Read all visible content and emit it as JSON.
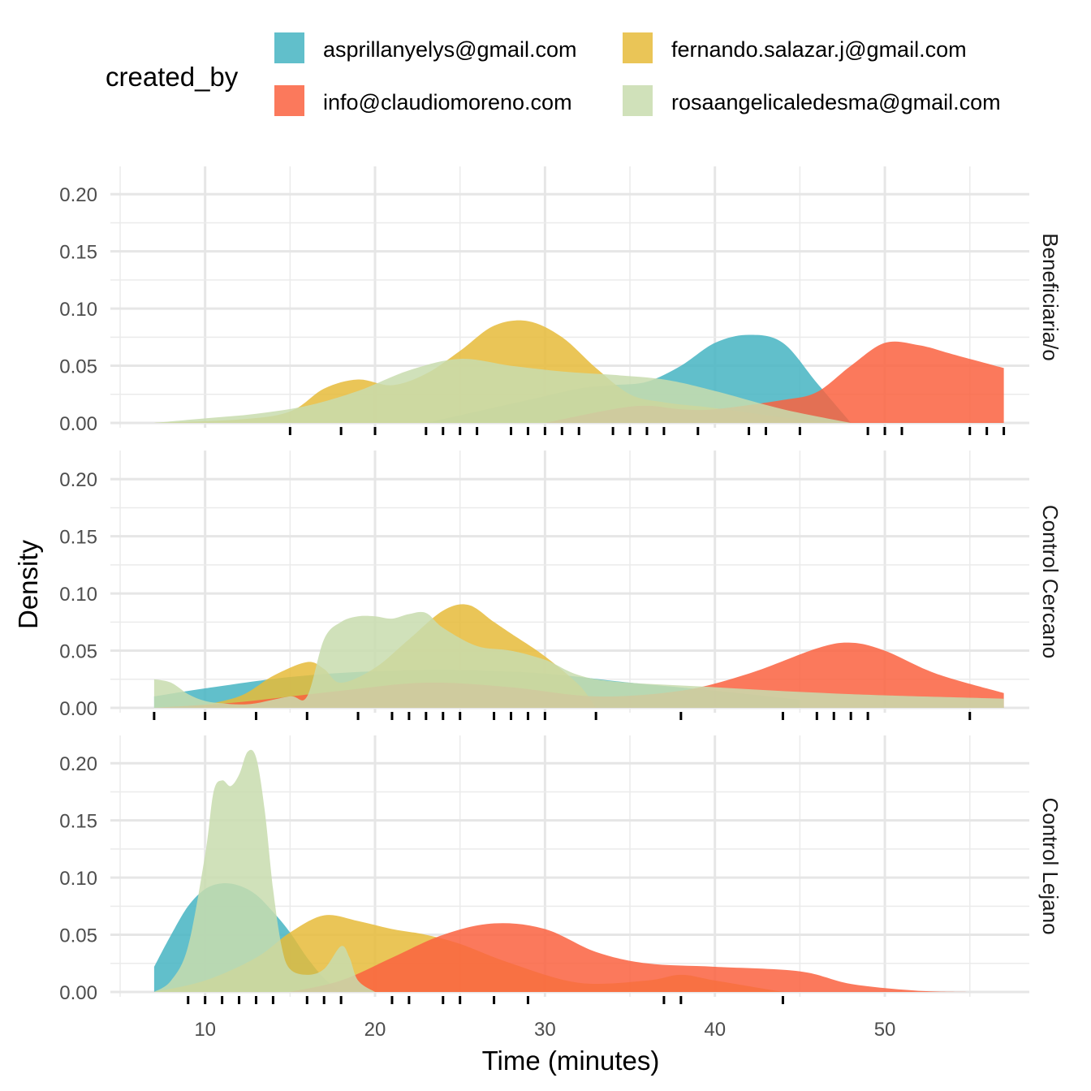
{
  "chart_data": {
    "type": "area",
    "subtype": "density",
    "xlabel": "Time (minutes)",
    "ylabel": "Density",
    "xlim": [
      5,
      58.5
    ],
    "ylim": [
      0,
      0.225
    ],
    "x_ticks": [
      10,
      20,
      30,
      40,
      50
    ],
    "y_ticks": [
      "0.00",
      "0.05",
      "0.10",
      "0.15",
      "0.20"
    ],
    "grid": true,
    "legend": {
      "title": "created_by",
      "position": "top",
      "items": [
        {
          "name": "asprillanyelys@gmail.com",
          "color": "#45B4C2"
        },
        {
          "name": "fernando.salazar.j@gmail.com",
          "color": "#E6BB3A"
        },
        {
          "name": "info@claudiomoreno.com",
          "color": "#FA6140"
        },
        {
          "name": "rosaangelicaledesma@gmail.com",
          "color": "#C8DCAE"
        }
      ]
    },
    "facets": [
      {
        "label": "Beneficiaria/o",
        "rug": [
          15,
          18,
          20,
          23,
          24,
          25,
          26,
          28,
          29,
          30,
          31,
          32,
          34,
          35,
          36,
          37,
          39,
          42,
          43,
          45,
          49,
          50,
          51,
          55,
          56,
          57
        ],
        "series": [
          {
            "name": "asprillanyelys@gmail.com",
            "x": [
              23,
              26,
              29,
              32,
              34,
              36,
              38,
              40,
              42,
              44,
              46,
              48
            ],
            "y": [
              0.0,
              0.01,
              0.02,
              0.03,
              0.033,
              0.036,
              0.05,
              0.07,
              0.077,
              0.07,
              0.035,
              0.0
            ]
          },
          {
            "name": "fernando.salazar.j@gmail.com",
            "x": [
              7,
              12,
              15,
              17,
              19,
              21,
              23,
              25,
              27,
              29,
              31,
              33,
              35,
              37,
              40,
              45,
              48
            ],
            "y": [
              0.0,
              0.003,
              0.01,
              0.03,
              0.038,
              0.033,
              0.043,
              0.063,
              0.085,
              0.089,
              0.075,
              0.048,
              0.025,
              0.018,
              0.013,
              0.003,
              0.0
            ]
          },
          {
            "name": "info@claudiomoreno.com",
            "x": [
              30,
              34,
              36,
              38,
              40,
              44,
              46,
              48,
              50,
              52,
              54,
              57
            ],
            "y": [
              0.0,
              0.012,
              0.015,
              0.012,
              0.012,
              0.02,
              0.027,
              0.05,
              0.07,
              0.068,
              0.06,
              0.048
            ]
          },
          {
            "name": "rosaangelicaledesma@gmail.com",
            "x": [
              7,
              10,
              13,
              16,
              19,
              22,
              25,
              28,
              31,
              34,
              37,
              40,
              44,
              48
            ],
            "y": [
              0.0,
              0.004,
              0.008,
              0.015,
              0.028,
              0.046,
              0.056,
              0.05,
              0.045,
              0.042,
              0.038,
              0.028,
              0.012,
              0.0
            ]
          }
        ]
      },
      {
        "label": "Control Cercano",
        "rug": [
          7,
          10,
          13,
          16,
          19,
          21,
          22,
          23,
          24,
          25,
          27,
          28,
          29,
          30,
          33,
          38,
          44,
          46,
          47,
          48,
          49,
          55
        ],
        "series": [
          {
            "name": "asprillanyelys@gmail.com",
            "x": [
              7,
              10,
              15,
              20,
              25,
              30,
              35,
              40,
              45
            ],
            "y": [
              0.01,
              0.017,
              0.027,
              0.032,
              0.033,
              0.03,
              0.022,
              0.015,
              0.007
            ]
          },
          {
            "name": "fernando.salazar.j@gmail.com",
            "x": [
              9,
              12,
              14,
              16,
              17,
              18,
              20,
              22,
              24,
              25.5,
              27,
              28,
              30,
              32,
              33
            ],
            "y": [
              0.0,
              0.01,
              0.028,
              0.04,
              0.034,
              0.022,
              0.035,
              0.06,
              0.085,
              0.09,
              0.075,
              0.065,
              0.045,
              0.02,
              0.0
            ]
          },
          {
            "name": "info@claudiomoreno.com",
            "x": [
              7,
              12,
              18,
              23,
              28,
              33,
              38,
              42,
              46,
              48,
              50,
              53,
              57
            ],
            "y": [
              0.0,
              0.005,
              0.015,
              0.022,
              0.018,
              0.01,
              0.015,
              0.03,
              0.052,
              0.057,
              0.05,
              0.03,
              0.013
            ]
          },
          {
            "name": "rosaangelicaledesma@gmail.com",
            "x": [
              7,
              8,
              9,
              10,
              11,
              12,
              13,
              15,
              16,
              17,
              18,
              19,
              20,
              21,
              22,
              23,
              24,
              26,
              28,
              30,
              33,
              40,
              48,
              57
            ],
            "y": [
              0.025,
              0.022,
              0.012,
              0.006,
              0.004,
              0.003,
              0.004,
              0.01,
              0.01,
              0.06,
              0.075,
              0.08,
              0.08,
              0.078,
              0.082,
              0.083,
              0.07,
              0.054,
              0.05,
              0.042,
              0.025,
              0.018,
              0.012,
              0.008
            ]
          }
        ]
      },
      {
        "label": "Control Lejano",
        "rug": [
          9,
          10,
          11,
          12,
          13,
          14,
          16,
          17,
          18,
          21,
          22,
          24,
          25,
          27,
          29,
          37,
          38,
          44
        ],
        "series": [
          {
            "name": "asprillanyelys@gmail.com",
            "x": [
              7,
              8,
              9,
              10,
              11,
              12,
              13,
              14,
              15,
              16,
              17,
              18
            ],
            "y": [
              0.022,
              0.05,
              0.075,
              0.09,
              0.095,
              0.093,
              0.085,
              0.07,
              0.052,
              0.03,
              0.012,
              0.0
            ]
          },
          {
            "name": "fernando.salazar.j@gmail.com",
            "x": [
              7,
              10,
              13,
              15,
              17,
              19,
              21,
              23,
              25,
              28,
              32,
              36,
              38,
              40,
              44
            ],
            "y": [
              0.0,
              0.01,
              0.03,
              0.052,
              0.067,
              0.062,
              0.055,
              0.05,
              0.042,
              0.025,
              0.008,
              0.01,
              0.015,
              0.01,
              0.0
            ]
          },
          {
            "name": "info@claudiomoreno.com",
            "x": [
              15,
              18,
              21,
              24,
              27,
              30,
              33,
              36,
              40,
              45,
              48,
              52,
              55
            ],
            "y": [
              0.0,
              0.01,
              0.03,
              0.05,
              0.06,
              0.055,
              0.035,
              0.025,
              0.022,
              0.018,
              0.007,
              0.001,
              0.0
            ]
          },
          {
            "name": "rosaangelicaledesma@gmail.com",
            "x": [
              7,
              8,
              9,
              10,
              10.5,
              11,
              11.5,
              12,
              12.5,
              13,
              13.5,
              14,
              14.5,
              15,
              16,
              17,
              18,
              18.5,
              19,
              20
            ],
            "y": [
              0.0,
              0.01,
              0.04,
              0.12,
              0.175,
              0.185,
              0.18,
              0.19,
              0.21,
              0.205,
              0.16,
              0.09,
              0.04,
              0.02,
              0.015,
              0.02,
              0.04,
              0.03,
              0.01,
              0.0
            ]
          }
        ]
      }
    ]
  }
}
